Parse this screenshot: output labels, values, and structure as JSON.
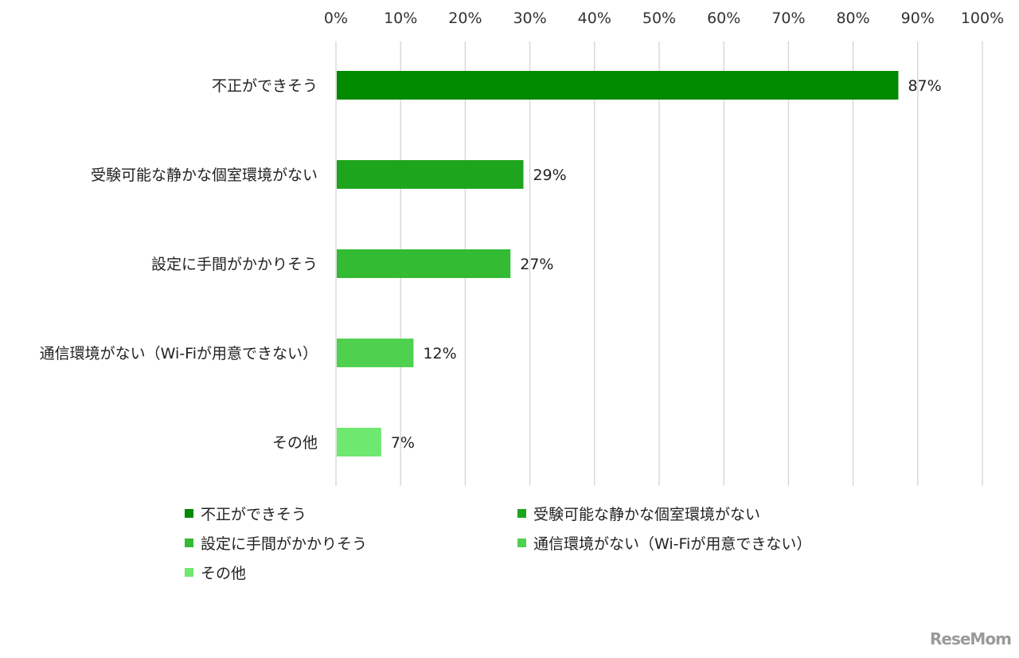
{
  "chart_data": {
    "type": "bar",
    "orientation": "horizontal",
    "categories": [
      "不正ができそう",
      "受験可能な静かな個室環境がない",
      "設定に手間がかかりそう",
      "通信環境がない（Wi-Fiが用意できない）",
      "その他"
    ],
    "values": [
      87,
      29,
      27,
      12,
      7
    ],
    "value_labels": [
      "87%",
      "29%",
      "27%",
      "12%",
      "7%"
    ],
    "colors": [
      "#008a00",
      "#1ea51e",
      "#34bb34",
      "#4fd14f",
      "#6ee86e"
    ],
    "xlim": [
      0,
      100
    ],
    "xticks": [
      "0%",
      "10%",
      "20%",
      "30%",
      "40%",
      "50%",
      "60%",
      "70%",
      "80%",
      "90%",
      "100%"
    ],
    "grid": true,
    "legend_placement": "bottom"
  },
  "legend": [
    {
      "label": "不正ができそう",
      "color": "#008a00"
    },
    {
      "label": "受験可能な静かな個室環境がない",
      "color": "#1ea51e"
    },
    {
      "label": "設定に手間がかかりそう",
      "color": "#34bb34"
    },
    {
      "label": "通信環境がない（Wi-Fiが用意できない）",
      "color": "#4fd14f"
    },
    {
      "label": "その他",
      "color": "#6ee86e"
    }
  ],
  "watermark": "ReseMom"
}
